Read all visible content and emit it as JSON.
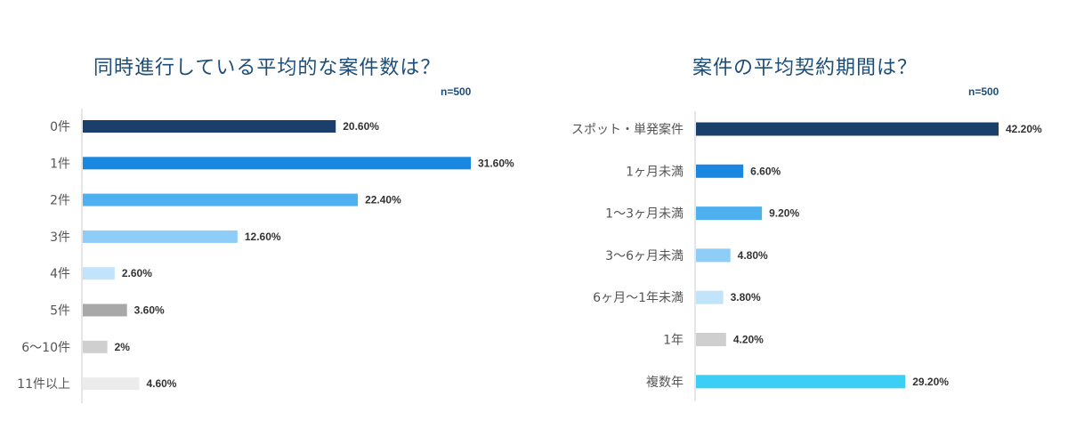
{
  "chart_data": [
    {
      "type": "bar",
      "orientation": "horizontal",
      "title": "同時進行している平均的な案件数は？",
      "sample_size": "n=500",
      "categories": [
        "0件",
        "1件",
        "2件",
        "3件",
        "4件",
        "5件",
        "6〜10件",
        "11件以上"
      ],
      "values": [
        20.6,
        31.6,
        22.4,
        12.6,
        2.6,
        3.6,
        2,
        4.6
      ],
      "value_labels": [
        "20.60%",
        "31.60%",
        "22.40%",
        "12.60%",
        "2.60%",
        "3.60%",
        "2%",
        "4.60%"
      ],
      "colors": [
        "#1a3f6b",
        "#1a88e0",
        "#4fb0f0",
        "#8dcdf8",
        "#c2e4fb",
        "#a8a8a8",
        "#cfcfcf",
        "#ececec"
      ],
      "unit": "%",
      "xlim": [
        0,
        31.6
      ],
      "grid": false,
      "legend": "none"
    },
    {
      "type": "bar",
      "orientation": "horizontal",
      "title": "案件の平均契約期間は？",
      "sample_size": "n=500",
      "categories": [
        "スポット・単発案件",
        "1ヶ月未満",
        "1〜3ヶ月未満",
        "3〜6ヶ月未満",
        "6ヶ月〜1年未満",
        "1年",
        "複数年"
      ],
      "values": [
        42.2,
        6.6,
        9.2,
        4.8,
        3.8,
        4.2,
        29.2
      ],
      "value_labels": [
        "42.20%",
        "6.60%",
        "9.20%",
        "4.80%",
        "3.80%",
        "4.20%",
        "29.20%"
      ],
      "colors": [
        "#1a3f6b",
        "#1a88e0",
        "#4fb0f0",
        "#8dcdf8",
        "#c2e4fb",
        "#cfcfcf",
        "#3ccff5"
      ],
      "unit": "%",
      "xlim": [
        0,
        42.2
      ],
      "grid": false,
      "legend": "none"
    }
  ]
}
